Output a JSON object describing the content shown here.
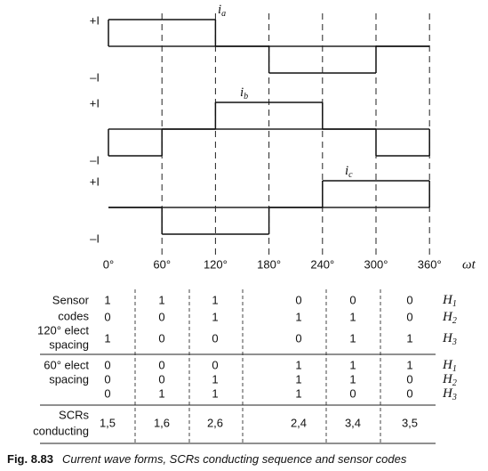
{
  "waveforms": {
    "plus_label": "+I",
    "minus_label": "–I",
    "axis_label": "ωt",
    "angles": [
      "0°",
      "60°",
      "120°",
      "180°",
      "240°",
      "300°",
      "360°"
    ],
    "panels": [
      {
        "symbol": "i",
        "subscript": "a",
        "levels": [
          1,
          1,
          0,
          -1,
          -1,
          0
        ]
      },
      {
        "symbol": "i",
        "subscript": "b",
        "levels": [
          -1,
          0,
          1,
          1,
          0,
          -1
        ]
      },
      {
        "symbol": "i",
        "subscript": "c",
        "levels": [
          0,
          -1,
          -1,
          0,
          1,
          1
        ]
      }
    ]
  },
  "table": {
    "groups": [
      {
        "label": [
          "Sensor",
          "codes",
          "120° elect",
          "spacing"
        ],
        "rows": [
          {
            "values": [
              1,
              1,
              1,
              0,
              0,
              0
            ],
            "h": "H",
            "sub": "1"
          },
          {
            "values": [
              0,
              0,
              1,
              1,
              1,
              0
            ],
            "h": "H",
            "sub": "2"
          },
          {
            "values": [
              1,
              0,
              0,
              0,
              1,
              1
            ],
            "h": "H",
            "sub": "3"
          }
        ]
      },
      {
        "label": [
          "60° elect",
          "spacing"
        ],
        "rows": [
          {
            "values": [
              0,
              0,
              0,
              1,
              1,
              1
            ],
            "h": "H",
            "sub": "1"
          },
          {
            "values": [
              0,
              0,
              1,
              1,
              1,
              0
            ],
            "h": "H",
            "sub": "2"
          },
          {
            "values": [
              0,
              1,
              1,
              1,
              0,
              0
            ],
            "h": "H",
            "sub": "3"
          }
        ]
      }
    ],
    "scr_label": [
      "SCRs",
      "conducting"
    ],
    "scr": [
      "1,5",
      "1,6",
      "2,6",
      "2,4",
      "3,4",
      "3,5"
    ]
  },
  "caption": {
    "number": "Fig. 8.83",
    "text": "Current wave forms, SCRs conducting sequence and sensor codes"
  }
}
